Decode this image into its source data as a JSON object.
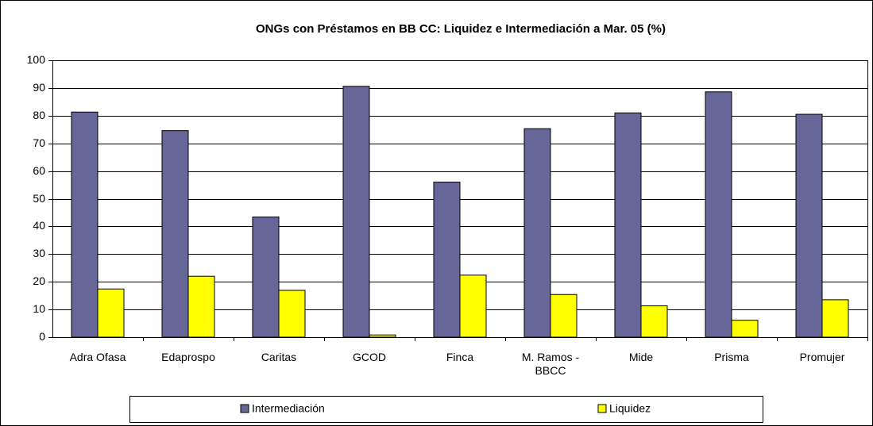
{
  "chart_data": {
    "type": "bar",
    "title": "ONGs con Préstamos en BB CC: Liquidez e  Intermediación a Mar. 05 (%)",
    "categories": [
      "Adra Ofasa",
      "Edaprospo",
      "Caritas",
      "GCOD",
      "Finca",
      "M. Ramos - BBCC",
      "Mide",
      "Prisma",
      "Promujer"
    ],
    "series": [
      {
        "name": "Intermediación",
        "color": "#666699",
        "values": [
          81.3,
          74.6,
          43.4,
          90.6,
          56,
          75.3,
          81,
          88.6,
          80.5
        ]
      },
      {
        "name": "Liquidez",
        "color": "#ffff00",
        "values": [
          17.4,
          22,
          16.9,
          0.8,
          22.4,
          15.4,
          11.3,
          6.1,
          13.5
        ]
      }
    ],
    "ylim": [
      0,
      100
    ],
    "yticks": [
      0,
      10,
      20,
      30,
      40,
      50,
      60,
      70,
      80,
      90,
      100
    ],
    "grid": true,
    "legend": "bottom"
  }
}
